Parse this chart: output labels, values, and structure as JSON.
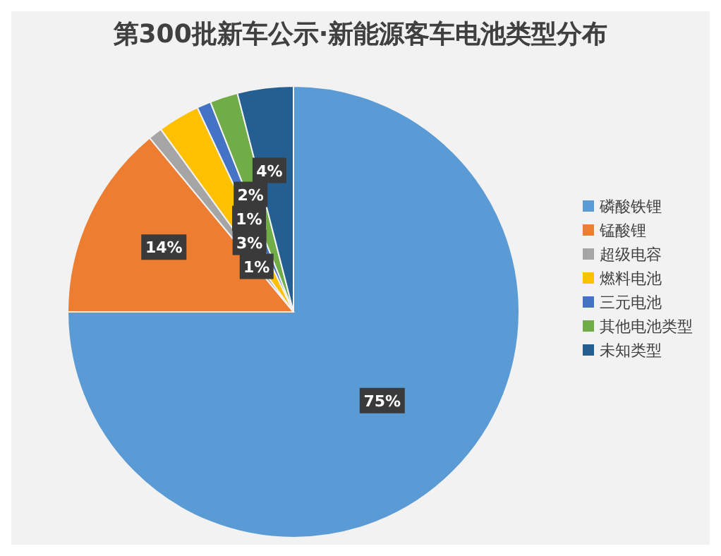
{
  "chart_data": {
    "type": "pie",
    "title": "第300批新车公示·新能源客车电池类型分布",
    "categories": [
      "磷酸铁锂",
      "锰酸锂",
      "超级电容",
      "燃料电池",
      "三元电池",
      "其他电池类型",
      "未知类型"
    ],
    "values": [
      75,
      14,
      1,
      3,
      1,
      2,
      4
    ],
    "colors": [
      "#5b9bd5",
      "#ed7d31",
      "#a5a5a5",
      "#ffc000",
      "#4472c4",
      "#70ad47",
      "#255e91"
    ],
    "value_labels": [
      "75%",
      "14%",
      "1%",
      "3%",
      "1%",
      "2%",
      "4%"
    ],
    "legend": "right"
  }
}
